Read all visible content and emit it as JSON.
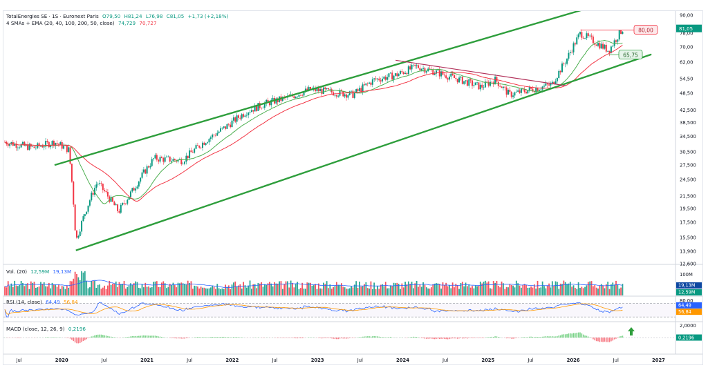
{
  "header": {
    "symbol": "TotalEnergies SE · 1S · Euronext Paris",
    "ohlc": {
      "O": "O79,50",
      "H": "H81,24",
      "L": "L76,98",
      "C": "C81,05",
      "change": "+1,73 (+2,18%)"
    },
    "indicator": "4 SMAs + EMA (20, 40, 100, 200, 50, close)",
    "sma_values": [
      "74,729",
      "70,727"
    ]
  },
  "price_axis": [
    "90,00",
    "81,05",
    "78,00",
    "70,00",
    "62,00",
    "54,50",
    "48,50",
    "42,500",
    "38,500",
    "34,500",
    "30,500",
    "27,500",
    "24,500",
    "21,500",
    "19,500",
    "17,500",
    "15,500",
    "13,900",
    "12,600"
  ],
  "badges": {
    "last": "81,05",
    "resistance": "80,00",
    "support": "65,75",
    "vol_ma": "19,13M",
    "vol": "12,59M",
    "rsi": "64,49",
    "rsi_ma": "56,84",
    "macd": "0,2196"
  },
  "volume": {
    "label": "Vol. (20)",
    "v1": "12,59M",
    "v2": "19,13M",
    "axis": "100M"
  },
  "rsi": {
    "label": "RSI (14, close)",
    "v1": "64,49",
    "v2": "56,84",
    "axis": "80,00",
    "levels": [
      70,
      30
    ]
  },
  "macd": {
    "label": "MACD (close, 12, 26, 9)",
    "v1": "0,2196",
    "axis": "2,0000"
  },
  "time_axis": [
    "Jul",
    "2020",
    "Jul",
    "2021",
    "Jul",
    "2022",
    "Jul",
    "2023",
    "Jul",
    "2024",
    "Jul",
    "2025",
    "Jul",
    "2026",
    "Jul",
    "2027"
  ],
  "colors": {
    "up": "#089981",
    "down": "#f23645",
    "channel": "#2e9e3c",
    "sma_fast": "#4caf50",
    "sma_slow": "#f23645",
    "rsi": "#2962ff",
    "rsi_ma": "#ff9800"
  },
  "chart_data": {
    "type": "line",
    "title": "",
    "series": [
      {
        "name": "close",
        "x": [
          "2019-05",
          "2019-09",
          "2019-12",
          "2020-02",
          "2020-03",
          "2020-06",
          "2020-09",
          "2020-11",
          "2021-02",
          "2021-06",
          "2021-09",
          "2021-12",
          "2022-03",
          "2022-06",
          "2022-09",
          "2022-12",
          "2023-03",
          "2023-06",
          "2023-09",
          "2023-12",
          "2024-03",
          "2024-06",
          "2024-09",
          "2024-12",
          "2025-02",
          "2025-04",
          "2025-07",
          "2025-10",
          "2025-12",
          "2026-02",
          "2026-04",
          "2026-06",
          "2026-08"
        ],
        "values": [
          33,
          31.5,
          33,
          31,
          15,
          24,
          19,
          22.5,
          29,
          28.5,
          33,
          37,
          42,
          45,
          47,
          50,
          49,
          48,
          54,
          56,
          60,
          57,
          54,
          51,
          54,
          48,
          50,
          52,
          63,
          78,
          73,
          68,
          81.05
        ]
      }
    ],
    "channel_upper": [
      [
        "2019-12",
        27.5
      ],
      [
        "2026-03",
        95
      ]
    ],
    "channel_lower": [
      [
        "2020-03",
        14
      ],
      [
        "2026-12",
        66
      ]
    ],
    "resistance": 80.0,
    "support": 65.75,
    "ylim": [
      12.6,
      90
    ]
  }
}
